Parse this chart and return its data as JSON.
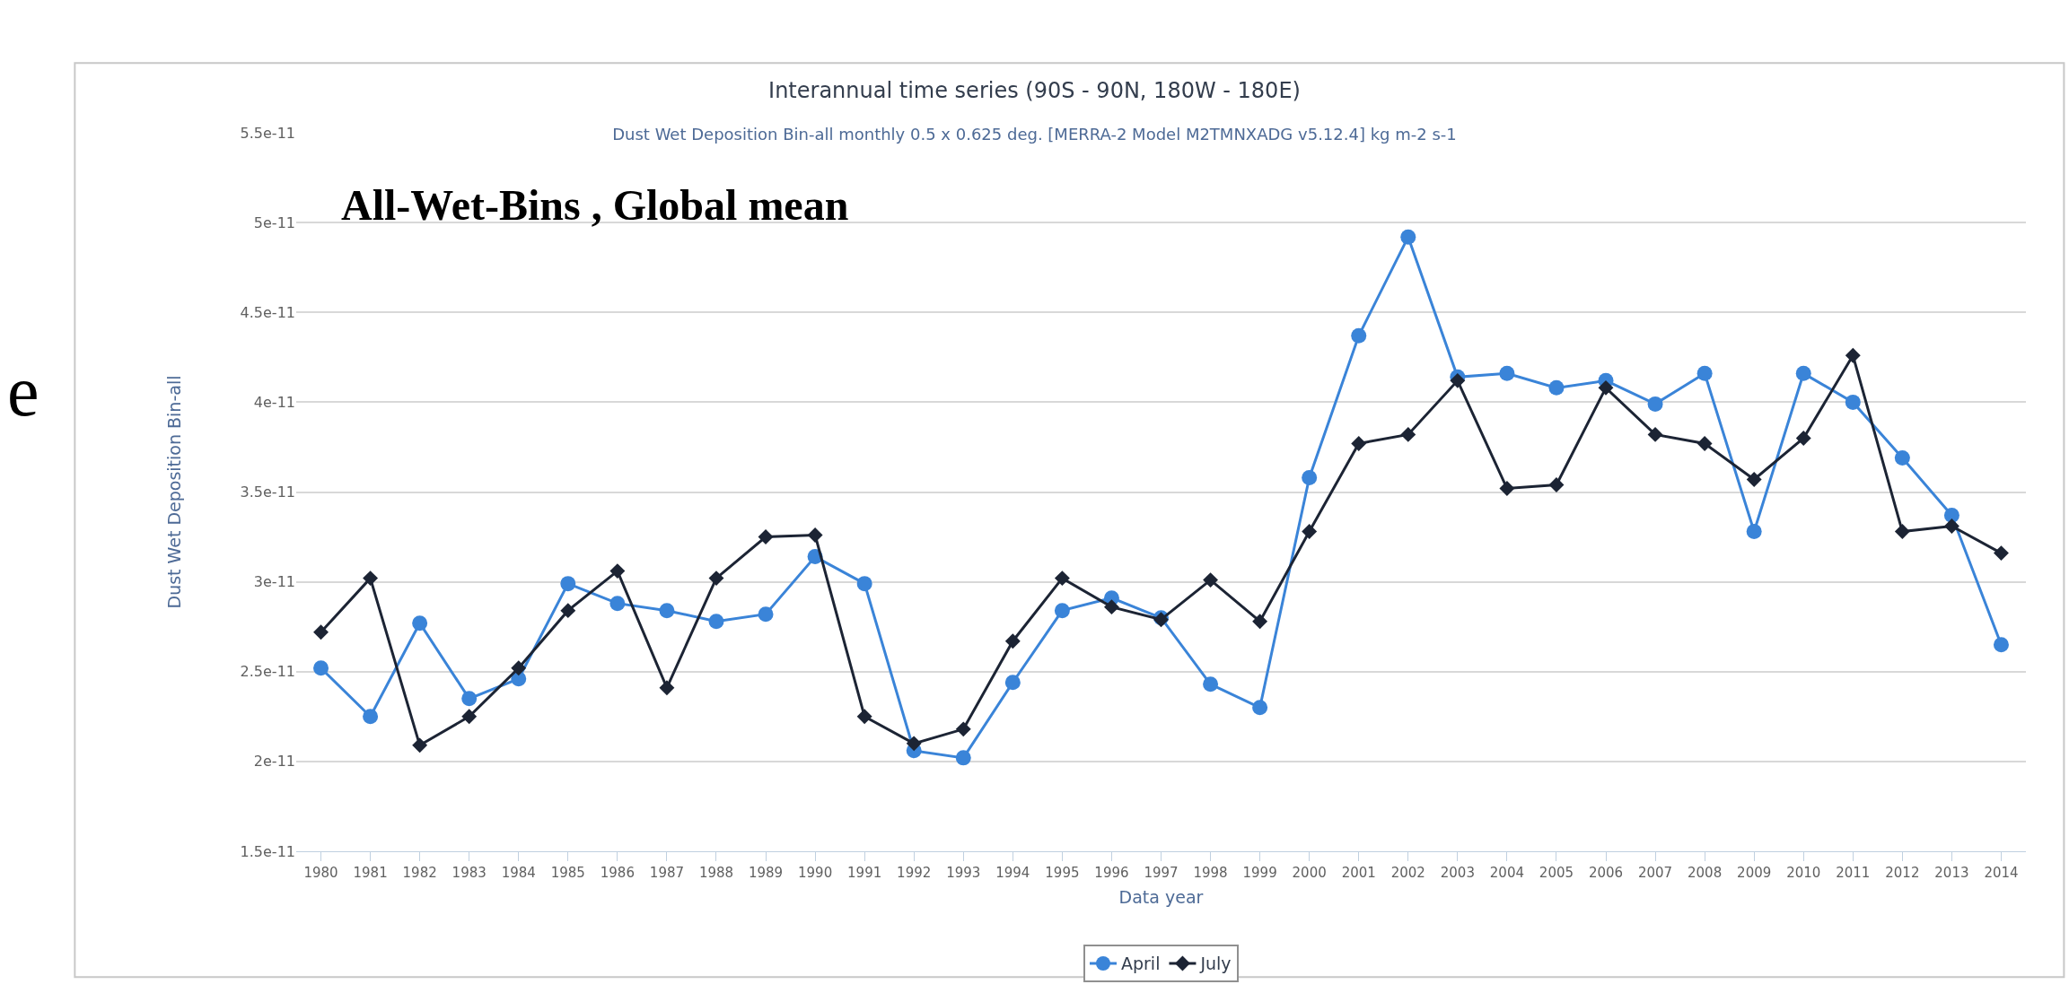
{
  "chart_data": {
    "type": "line",
    "title": "Interannual time series (90S - 90N, 180W - 180E)",
    "subtitle": "Dust Wet Deposition Bin-all monthly 0.5 x 0.625 deg. [MERRA-2 Model M2TMNXADG v5.12.4] kg m-2 s-1",
    "xlabel": "Data year",
    "ylabel": "Dust Wet Deposition Bin-all",
    "annotations": [
      "All-Wet-Bins , Global mean",
      "e"
    ],
    "categories": [
      "1980",
      "1981",
      "1982",
      "1983",
      "1984",
      "1985",
      "1986",
      "1987",
      "1988",
      "1989",
      "1990",
      "1991",
      "1992",
      "1993",
      "1994",
      "1995",
      "1996",
      "1997",
      "1998",
      "1999",
      "2000",
      "2001",
      "2002",
      "2003",
      "2004",
      "2005",
      "2006",
      "2007",
      "2008",
      "2009",
      "2010",
      "2011",
      "2012",
      "2013",
      "2014"
    ],
    "series": [
      {
        "name": "April",
        "color": "#3a84d8",
        "marker": "circle",
        "values": [
          2.52e-11,
          2.25e-11,
          2.77e-11,
          2.35e-11,
          2.46e-11,
          2.99e-11,
          2.88e-11,
          2.84e-11,
          2.78e-11,
          2.82e-11,
          3.14e-11,
          2.99e-11,
          2.06e-11,
          2.02e-11,
          2.44e-11,
          2.84e-11,
          2.91e-11,
          2.8e-11,
          2.43e-11,
          2.3e-11,
          3.58e-11,
          4.37e-11,
          4.92e-11,
          4.14e-11,
          4.16e-11,
          4.08e-11,
          4.12e-11,
          3.99e-11,
          4.16e-11,
          3.28e-11,
          4.16e-11,
          4e-11,
          3.69e-11,
          3.37e-11,
          2.65e-11
        ]
      },
      {
        "name": "July",
        "color": "#1c2434",
        "marker": "diamond",
        "values": [
          2.72e-11,
          3.02e-11,
          2.09e-11,
          2.25e-11,
          2.52e-11,
          2.84e-11,
          3.06e-11,
          2.41e-11,
          3.02e-11,
          3.25e-11,
          3.26e-11,
          2.25e-11,
          2.1e-11,
          2.18e-11,
          2.67e-11,
          3.02e-11,
          2.86e-11,
          2.79e-11,
          3.01e-11,
          2.78e-11,
          3.28e-11,
          3.77e-11,
          3.82e-11,
          4.12e-11,
          3.52e-11,
          3.54e-11,
          4.08e-11,
          3.82e-11,
          3.77e-11,
          3.57e-11,
          3.8e-11,
          4.26e-11,
          3.28e-11,
          3.31e-11,
          3.16e-11
        ]
      }
    ],
    "ylim": [
      1.5e-11,
      5.5e-11
    ],
    "yticks": [
      {
        "value": 1.5e-11,
        "label": "1.5e-11"
      },
      {
        "value": 2e-11,
        "label": "2e-11"
      },
      {
        "value": 2.5e-11,
        "label": "2.5e-11"
      },
      {
        "value": 3e-11,
        "label": "3e-11"
      },
      {
        "value": 3.5e-11,
        "label": "3.5e-11"
      },
      {
        "value": 4e-11,
        "label": "4e-11"
      },
      {
        "value": 4.5e-11,
        "label": "4.5e-11"
      },
      {
        "value": 5e-11,
        "label": "5e-11"
      },
      {
        "value": 5.5e-11,
        "label": "5.5e-11"
      }
    ],
    "grid": "y",
    "legend": "bottom",
    "line_style": "solid"
  }
}
